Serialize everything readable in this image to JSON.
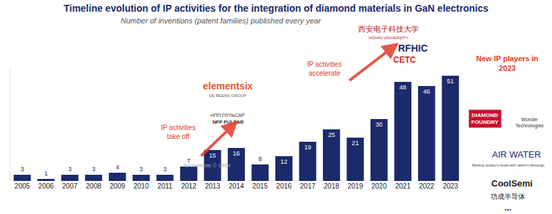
{
  "chart_data": {
    "type": "bar",
    "title": "Timeline evolution of IP activities for the integration of diamond materials in GaN electronics",
    "subtitle": "Number of inventions (patent families) published every year",
    "categories": [
      "2005",
      "2006",
      "2007",
      "2008",
      "2009",
      "2010",
      "2011",
      "2012",
      "2013",
      "2014",
      "2015",
      "2016",
      "2017",
      "2018",
      "2019",
      "2020",
      "2021",
      "2022",
      "2023"
    ],
    "values": [
      3,
      1,
      3,
      3,
      4,
      3,
      3,
      7,
      15,
      16,
      8,
      12,
      19,
      25,
      21,
      30,
      48,
      46,
      51
    ],
    "color": "#1b2a6b",
    "ylim": [
      0,
      55
    ],
    "grid": false,
    "data_labels": true,
    "tick_labels": "x",
    "annotations": [
      "IP activities\ntake off",
      "IP activities\naccelerate",
      "elementsix",
      "DE BEERS GROUP",
      "НПП ПУЛЬСАР",
      "NPP PULSAR",
      "西安电子科技大学",
      "XIDIAN UNIVERSITY",
      "RFHIC",
      "CETC",
      "New IP players in\n2023",
      "DIAMOND\nFOUNDRY",
      "Wonder\nTechnologies",
      "AIR WATER",
      "Meeting society's needs with nature's blessings.",
      "CoolSemi",
      "功成半导体",
      "...",
      "Knowmade © 2024"
    ]
  }
}
